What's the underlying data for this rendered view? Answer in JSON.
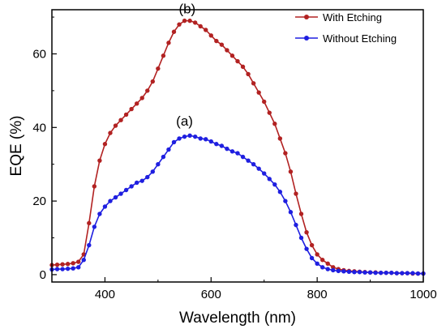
{
  "chart_data": {
    "type": "line",
    "title": "",
    "xlabel": "Wavelength (nm)",
    "ylabel": "EQE (%)",
    "xlim": [
      300,
      1000
    ],
    "ylim": [
      -2,
      72
    ],
    "xticks": [
      400,
      600,
      800,
      1000
    ],
    "yticks": [
      0,
      20,
      40,
      60
    ],
    "grid": false,
    "legend_position": "top-right",
    "annotations": [
      {
        "text": "(b)",
        "x": 555,
        "y": 71
      },
      {
        "text": "(a)",
        "x": 550,
        "y": 40.5
      }
    ],
    "series": [
      {
        "name": "With Etching",
        "color": "#b22222",
        "x": [
          300,
          310,
          320,
          330,
          340,
          350,
          360,
          370,
          380,
          390,
          400,
          410,
          420,
          430,
          440,
          450,
          460,
          470,
          480,
          490,
          500,
          510,
          520,
          530,
          540,
          550,
          560,
          570,
          580,
          590,
          600,
          610,
          620,
          630,
          640,
          650,
          660,
          670,
          680,
          690,
          700,
          710,
          720,
          730,
          740,
          750,
          760,
          770,
          780,
          790,
          800,
          810,
          820,
          830,
          840,
          850,
          860,
          870,
          880,
          890,
          900,
          910,
          920,
          930,
          940,
          950,
          960,
          970,
          980,
          990,
          1000
        ],
        "y": [
          2.6,
          2.7,
          2.8,
          2.9,
          3.1,
          3.5,
          5.5,
          14,
          24,
          31,
          35.5,
          38.5,
          40.5,
          42,
          43.5,
          45,
          46.5,
          48,
          50,
          52.5,
          56,
          59.5,
          63,
          66,
          68,
          69,
          69,
          68.5,
          67.5,
          66.5,
          65,
          63.5,
          62.5,
          61,
          59.5,
          58,
          56.5,
          54.5,
          52,
          49.5,
          47,
          44,
          41,
          37,
          33,
          28,
          22,
          16.5,
          11.5,
          8,
          5.5,
          4,
          3,
          2,
          1.5,
          1.2,
          1,
          0.9,
          0.8,
          0.7,
          0.6,
          0.6,
          0.5,
          0.5,
          0.5,
          0.4,
          0.4,
          0.4,
          0.3,
          0.3,
          0.3
        ]
      },
      {
        "name": "Without Etching",
        "color": "#1f1fe0",
        "x": [
          300,
          310,
          320,
          330,
          340,
          350,
          360,
          370,
          380,
          390,
          400,
          410,
          420,
          430,
          440,
          450,
          460,
          470,
          480,
          490,
          500,
          510,
          520,
          530,
          540,
          550,
          560,
          570,
          580,
          590,
          600,
          610,
          620,
          630,
          640,
          650,
          660,
          670,
          680,
          690,
          700,
          710,
          720,
          730,
          740,
          750,
          760,
          770,
          780,
          790,
          800,
          810,
          820,
          830,
          840,
          850,
          860,
          870,
          880,
          890,
          900,
          910,
          920,
          930,
          940,
          950,
          960,
          970,
          980,
          990,
          1000
        ],
        "y": [
          1.4,
          1.5,
          1.5,
          1.6,
          1.7,
          2,
          4,
          8,
          13,
          16.5,
          18.5,
          20,
          21,
          22,
          23,
          24,
          25,
          25.5,
          26.5,
          28,
          30,
          32,
          34,
          36,
          37,
          37.5,
          37.8,
          37.5,
          37,
          36.8,
          36.2,
          35.5,
          35,
          34.2,
          33.5,
          33,
          32,
          31,
          30,
          28.8,
          27.5,
          26,
          24.5,
          22.5,
          20,
          17,
          13.5,
          10,
          7,
          4.5,
          3,
          2,
          1.5,
          1.2,
          1,
          0.9,
          0.8,
          0.7,
          0.7,
          0.6,
          0.6,
          0.5,
          0.5,
          0.5,
          0.5,
          0.4,
          0.4,
          0.4,
          0.4,
          0.3,
          0.3
        ]
      }
    ]
  }
}
